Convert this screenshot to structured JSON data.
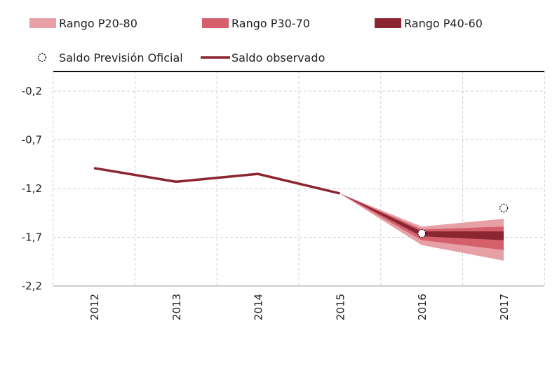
{
  "chart_data": {
    "type": "line",
    "title": "",
    "xlabel": "",
    "ylabel": "",
    "categories": [
      "2012",
      "2013",
      "2014",
      "2015",
      "2016",
      "2017"
    ],
    "ylim": [
      -2.2,
      0.0
    ],
    "yticks": [
      -0.2,
      -0.7,
      -1.2,
      -1.7,
      -2.2
    ],
    "ytick_labels": [
      "-0,2",
      "-0,7",
      "-1,2",
      "-1,7",
      "-2,2"
    ],
    "grid": true,
    "legend_position": "top",
    "series": [
      {
        "name": "Saldo observado",
        "kind": "line",
        "color": "#8b2530",
        "values": [
          -0.99,
          -1.13,
          -1.05,
          -1.25,
          null,
          null
        ]
      },
      {
        "name": "Saldo Previsión Oficial",
        "kind": "scatter",
        "marker": "open-circle",
        "values": [
          null,
          null,
          null,
          null,
          -1.66,
          -1.4
        ]
      }
    ],
    "bands": [
      {
        "name": "Rango P20-80",
        "color": "#e6a0a6",
        "anchor_year": "2015",
        "anchor_value": -1.25,
        "lower": {
          "2016": -1.78,
          "2017": -1.94
        },
        "upper": {
          "2016": -1.59,
          "2017": -1.51
        }
      },
      {
        "name": "Rango P30-70",
        "color": "#d4606c",
        "anchor_year": "2015",
        "anchor_value": -1.25,
        "lower": {
          "2016": -1.73,
          "2017": -1.83
        },
        "upper": {
          "2016": -1.62,
          "2017": -1.59
        }
      },
      {
        "name": "Rango P40-60",
        "color": "#8b2530",
        "anchor_year": "2015",
        "anchor_value": -1.25,
        "lower": {
          "2016": -1.69,
          "2017": -1.73
        },
        "upper": {
          "2016": -1.64,
          "2017": -1.64
        }
      }
    ]
  }
}
